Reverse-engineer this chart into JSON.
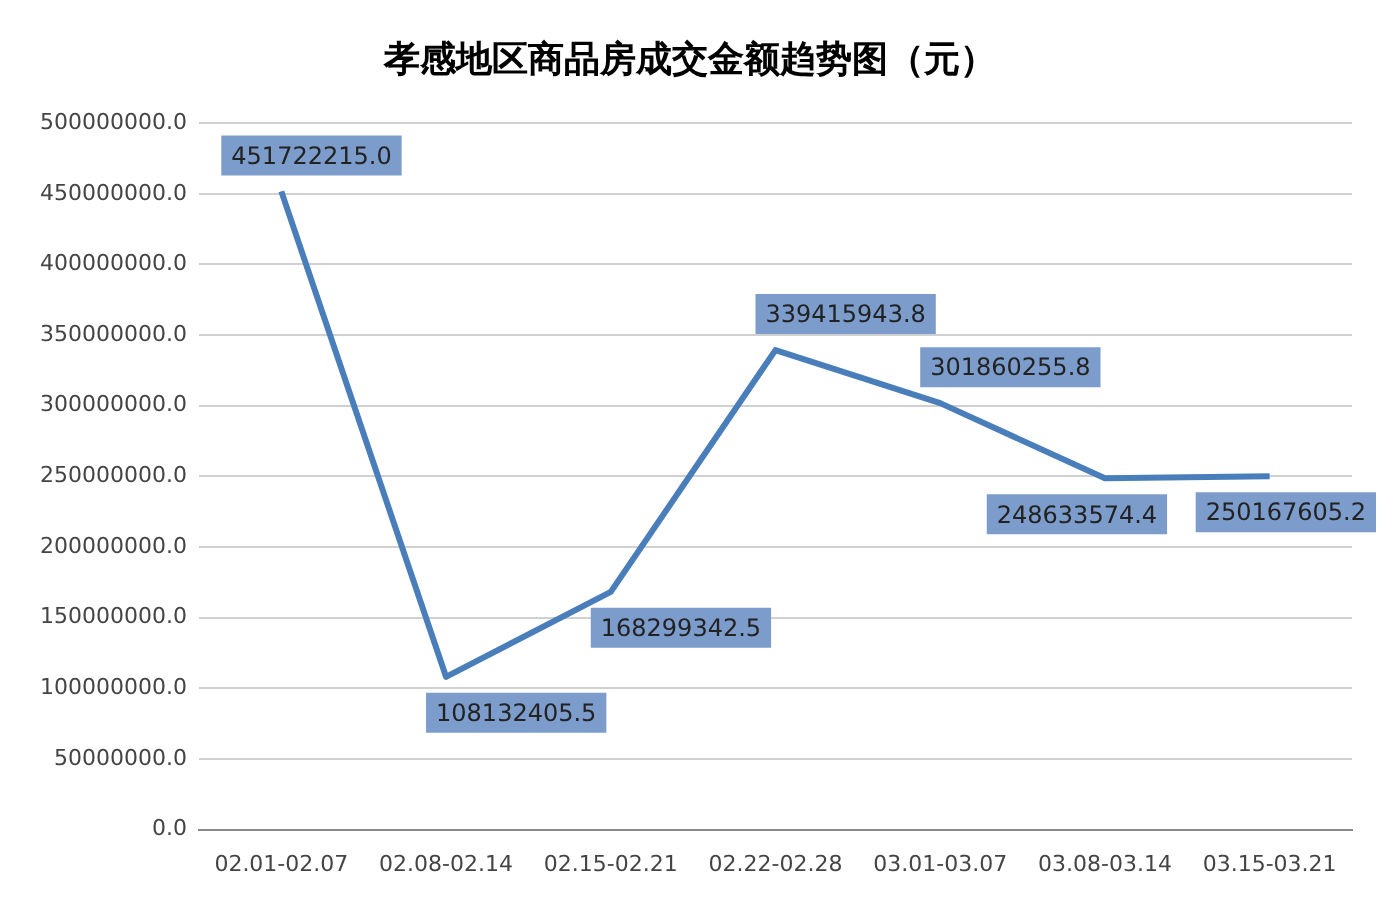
{
  "chart_data": {
    "type": "line",
    "title": "孝感地区商品房成交金额趋势图（元）",
    "categories": [
      "02.01-02.07",
      "02.08-02.14",
      "02.15-02.21",
      "02.22-02.28",
      "03.01-03.07",
      "03.08-03.14",
      "03.15-03.21"
    ],
    "series": [
      {
        "color": "#4a7ebb",
        "values": [
          451722215.0,
          108132405.5,
          168299342.5,
          339415943.8,
          301860255.8,
          248633574.4,
          250167605.2
        ],
        "value_labels": [
          "451722215.0",
          "108132405.5",
          "168299342.5",
          "339415943.8",
          "301860255.8",
          "248633574.4",
          "250167605.2"
        ]
      }
    ],
    "ylim": [
      0,
      500000000
    ],
    "yticks": [
      {
        "value": 0,
        "label": "0.0"
      },
      {
        "value": 50000000,
        "label": "50000000.0"
      },
      {
        "value": 100000000,
        "label": "100000000.0"
      },
      {
        "value": 150000000,
        "label": "150000000.0"
      },
      {
        "value": 200000000,
        "label": "200000000.0"
      },
      {
        "value": 250000000,
        "label": "250000000.0"
      },
      {
        "value": 300000000,
        "label": "300000000.0"
      },
      {
        "value": 350000000,
        "label": "350000000.0"
      },
      {
        "value": 400000000,
        "label": "400000000.0"
      },
      {
        "value": 450000000,
        "label": "450000000.0"
      },
      {
        "value": 500000000,
        "label": "500000000.0"
      }
    ],
    "grid": "y",
    "marker": "none",
    "line_style": "solid",
    "legend": false
  }
}
